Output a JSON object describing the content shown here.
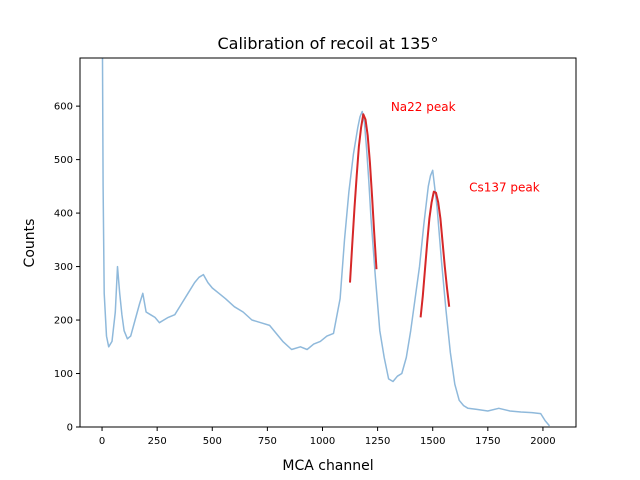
{
  "chart_data": {
    "type": "line",
    "title": "Calibration of recoil at 135°",
    "xlabel": "MCA channel",
    "ylabel": "Counts",
    "xlim": [
      -100,
      2150
    ],
    "ylim": [
      0,
      690
    ],
    "xticks": [
      0,
      250,
      500,
      750,
      1000,
      1250,
      1500,
      1750,
      2000
    ],
    "yticks": [
      0,
      100,
      200,
      300,
      400,
      500,
      600
    ],
    "grid": false,
    "series": [
      {
        "kind": "spectrum",
        "color": "#8fb9db",
        "x": [
          2,
          5,
          10,
          20,
          30,
          45,
          60,
          70,
          80,
          90,
          100,
          115,
          130,
          150,
          170,
          185,
          200,
          220,
          240,
          260,
          280,
          300,
          330,
          360,
          390,
          420,
          440,
          460,
          480,
          500,
          530,
          560,
          600,
          640,
          680,
          720,
          760,
          790,
          820,
          860,
          900,
          930,
          960,
          990,
          1020,
          1050,
          1080,
          1100,
          1120,
          1140,
          1160,
          1170,
          1180,
          1190,
          1200,
          1210,
          1220,
          1240,
          1260,
          1280,
          1300,
          1320,
          1340,
          1360,
          1380,
          1400,
          1420,
          1440,
          1460,
          1480,
          1490,
          1500,
          1510,
          1520,
          1540,
          1560,
          1580,
          1600,
          1620,
          1640,
          1660,
          1700,
          1750,
          1800,
          1850,
          1900,
          1950,
          1990,
          2010,
          2030
        ],
        "y": [
          690,
          450,
          250,
          170,
          150,
          160,
          215,
          300,
          250,
          210,
          180,
          165,
          170,
          200,
          230,
          250,
          215,
          210,
          205,
          195,
          200,
          205,
          210,
          230,
          250,
          270,
          280,
          285,
          270,
          260,
          250,
          240,
          225,
          215,
          200,
          195,
          190,
          175,
          160,
          145,
          150,
          145,
          155,
          160,
          170,
          175,
          240,
          350,
          440,
          510,
          560,
          580,
          590,
          570,
          520,
          460,
          390,
          280,
          180,
          130,
          90,
          85,
          95,
          100,
          130,
          180,
          240,
          300,
          380,
          450,
          470,
          480,
          445,
          410,
          310,
          220,
          140,
          80,
          50,
          40,
          35,
          33,
          30,
          35,
          30,
          28,
          27,
          25,
          12,
          2
        ]
      },
      {
        "kind": "fit",
        "color": "#d62728",
        "x": [
          1125,
          1135,
          1145,
          1155,
          1165,
          1175,
          1185,
          1195,
          1205,
          1215,
          1225,
          1235,
          1245
        ],
        "y": [
          270,
          340,
          410,
          470,
          525,
          560,
          585,
          575,
          545,
          495,
          430,
          360,
          295
        ]
      },
      {
        "kind": "fit",
        "color": "#d62728",
        "x": [
          1445,
          1455,
          1465,
          1475,
          1485,
          1495,
          1505,
          1515,
          1525,
          1535,
          1545,
          1555,
          1565,
          1575
        ],
        "y": [
          205,
          245,
          295,
          345,
          390,
          420,
          440,
          438,
          420,
          390,
          345,
          300,
          260,
          225
        ]
      }
    ],
    "annotations": [
      {
        "text": "Na22 peak",
        "x": 1310,
        "y": 600,
        "color": "#ff0000"
      },
      {
        "text": "Cs137 peak",
        "x": 1665,
        "y": 450,
        "color": "#ff0000"
      }
    ]
  }
}
